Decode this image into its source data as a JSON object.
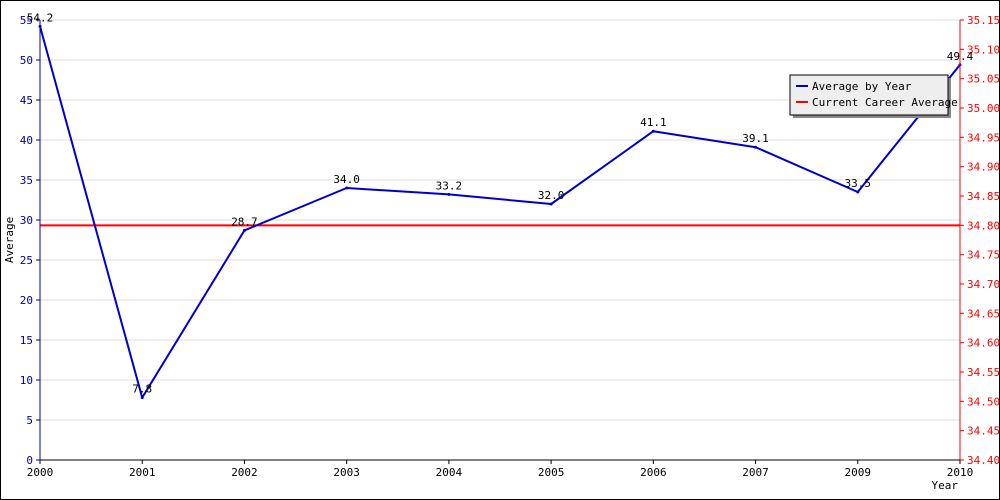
{
  "chart_data": {
    "type": "line",
    "title": "",
    "ylabel": "Average",
    "xlabel": "Year",
    "categories": [
      "2000",
      "2001",
      "2002",
      "2003",
      "2004",
      "2005",
      "2006",
      "2007",
      "2009",
      "2010"
    ],
    "series": [
      {
        "name": "Average by Year",
        "values": [
          54.2,
          7.8,
          28.7,
          34.0,
          33.2,
          32.0,
          41.1,
          39.1,
          33.5,
          49.4
        ],
        "labels": [
          "54.2",
          "7.8",
          "28.7",
          "34.0",
          "33.2",
          "32.0",
          "41.1",
          "39.1",
          "33.5",
          "49.4"
        ],
        "color": "#0000cc",
        "axis": "left"
      },
      {
        "name": "Current Career Average",
        "value": 34.8,
        "color": "#ff0000",
        "axis": "right"
      }
    ],
    "ylim_left": [
      0,
      55
    ],
    "yticks_left": [
      "0",
      "5",
      "10",
      "15",
      "20",
      "25",
      "30",
      "35",
      "40",
      "45",
      "50",
      "55"
    ],
    "ylim_right": [
      34.4,
      35.15
    ],
    "yticks_right": [
      "34.40",
      "34.45",
      "34.50",
      "34.55",
      "34.60",
      "34.65",
      "34.70",
      "34.75",
      "34.80",
      "34.85",
      "34.90",
      "34.95",
      "35.00",
      "35.05",
      "35.10",
      "35.15"
    ],
    "grid": true,
    "legend_position": "top-right"
  },
  "colors": {
    "left_axis": "#0000aa",
    "right_axis": "#ff0000",
    "grid": "#dddddd",
    "legend_bg": "#eeeeee"
  }
}
